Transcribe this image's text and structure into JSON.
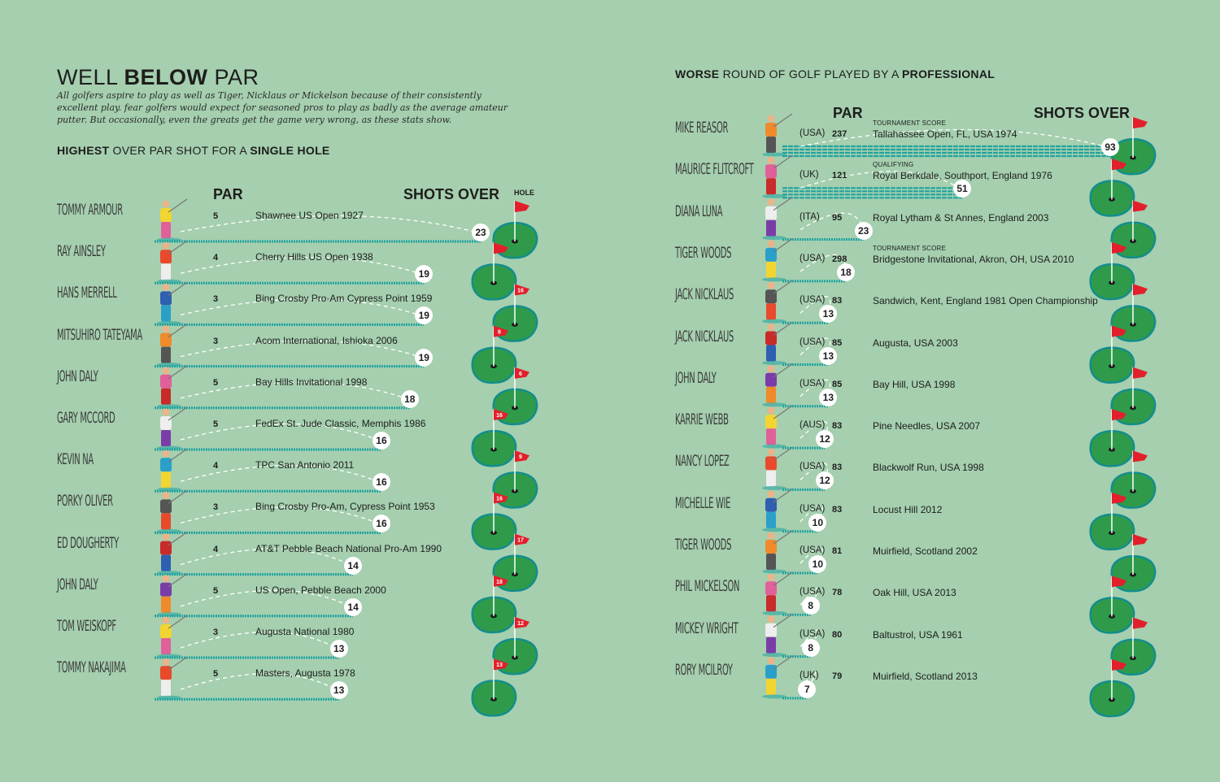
{
  "title": {
    "pre": "WELL ",
    "bold": "BELOW",
    "post": " PAR"
  },
  "intro": "All golfers aspire to play as well as Tiger, Nicklaus or Mickelson because of their consistently excellent play. fear golfers would expect for seasoned pros to play as badly as the average amateur putter. But occasionally, even the greats get the game very wrong, as these stats show.",
  "colors": {
    "background": "#a5cfae",
    "bar": "#1fa3a1",
    "green": "#2f9b4a",
    "green_rim": "#138d8d",
    "flag": "#e2202b"
  },
  "chart_data": [
    {
      "type": "bar",
      "subtitle": {
        "b1": "HIGHEST",
        "t1": " OVER PAR SHOT FOR A ",
        "b2": "SINGLE HOLE"
      },
      "par_label": "PAR",
      "shots_label": "SHOTS OVER",
      "hole_label": "HOLE",
      "rows": [
        {
          "name": "TOMMY ARMOUR",
          "par": "5",
          "event": "Shawnee US Open 1927",
          "over": 23,
          "hole": ""
        },
        {
          "name": "RAY AINSLEY",
          "par": "4",
          "event": "Cherry Hills US Open 1938",
          "over": 19,
          "hole": ""
        },
        {
          "name": "HANS MERRELL",
          "par": "3",
          "event": "Bing Crosby Pro-Am Cypress Point 1959",
          "over": 19,
          "hole": "16"
        },
        {
          "name": "MITSUHIRO TATEYAMA",
          "par": "3",
          "event": "Acom International, Ishioka 2006",
          "over": 19,
          "hole": "8"
        },
        {
          "name": "JOHN DALY",
          "par": "5",
          "event": "Bay Hills Invitational 1998",
          "over": 18,
          "hole": "6"
        },
        {
          "name": "GARY MCCORD",
          "par": "5",
          "event": "FedEx St. Jude Classic, Memphis 1986",
          "over": 16,
          "hole": "16"
        },
        {
          "name": "KEVIN NA",
          "par": "4",
          "event": "TPC San Antonio 2011",
          "over": 16,
          "hole": "9"
        },
        {
          "name": "PORKY OLIVER",
          "par": "3",
          "event": "Bing Crosby Pro-Am, Cypress Point 1953",
          "over": 16,
          "hole": "16"
        },
        {
          "name": "ED DOUGHERTY",
          "par": "4",
          "event": "AT&T Pebble Beach National Pro-Am 1990",
          "over": 14,
          "hole": "17"
        },
        {
          "name": "JOHN DALY",
          "par": "5",
          "event": "US Open, Pebble Beach 2000",
          "over": 14,
          "hole": "18"
        },
        {
          "name": "TOM WEISKOPF",
          "par": "3",
          "event": "Augusta National 1980",
          "over": 13,
          "hole": "12"
        },
        {
          "name": "TOMMY NAKAJIMA",
          "par": "5",
          "event": "Masters, Augusta 1978",
          "over": 13,
          "hole": "13"
        }
      ]
    },
    {
      "type": "bar",
      "subtitle": {
        "b1": "",
        "t1": "WORSE ",
        "b2": ""
      },
      "subtitle_full": {
        "b1": "WORSE",
        "t1": " ROUND ",
        "t2": "OF GOLF PLAYED BY A ",
        "b2": "PROFESSIONAL"
      },
      "par_label": "PAR",
      "shots_label": "SHOTS OVER",
      "rows": [
        {
          "name": "MIKE REASOR",
          "country": "(USA)",
          "par": "237",
          "note": "TOURNAMENT SCORE",
          "event": "Tallahassee Open, FL, USA 1974",
          "over": 93
        },
        {
          "name": "MAURICE FLITCROFT",
          "country": "(UK)",
          "par": "121",
          "note": "QUALIFYING",
          "event": "Royal Berkdale, Southport, England 1976",
          "over": 51
        },
        {
          "name": "DIANA LUNA",
          "country": "(ITA)",
          "par": "95",
          "note": "",
          "event": "Royal Lytham & St Annes, England 2003",
          "over": 23
        },
        {
          "name": "TIGER WOODS",
          "country": "(USA)",
          "par": "298",
          "note": "TOURNAMENT SCORE",
          "event": "Bridgestone Invitational, Akron, OH, USA 2010",
          "over": 18
        },
        {
          "name": "JACK NICKLAUS",
          "country": "(USA)",
          "par": "83",
          "note": "",
          "event": "Sandwich, Kent, England 1981 Open Championship",
          "over": 13
        },
        {
          "name": "JACK NICKLAUS",
          "country": "(USA)",
          "par": "85",
          "note": "",
          "event": "Augusta, USA 2003",
          "over": 13
        },
        {
          "name": "JOHN DALY",
          "country": "(USA)",
          "par": "85",
          "note": "",
          "event": "Bay Hill, USA 1998",
          "over": 13
        },
        {
          "name": "KARRIE WEBB",
          "country": "(AUS)",
          "par": "83",
          "note": "",
          "event": "Pine Needles, USA 2007",
          "over": 12
        },
        {
          "name": "NANCY LOPEZ",
          "country": "(USA)",
          "par": "83",
          "note": "",
          "event": "Blackwolf Run, USA 1998",
          "over": 12
        },
        {
          "name": "MICHELLE WIE",
          "country": "(USA)",
          "par": "83",
          "note": "",
          "event": "Locust Hill 2012",
          "over": 10
        },
        {
          "name": "TIGER WOODS",
          "country": "(USA)",
          "par": "81",
          "note": "",
          "event": "Muirfield, Scotland 2002",
          "over": 10
        },
        {
          "name": "PHIL MICKELSON",
          "country": "(USA)",
          "par": "78",
          "note": "",
          "event": "Oak Hill, USA 2013",
          "over": 8
        },
        {
          "name": "MICKEY WRIGHT",
          "country": "(USA)",
          "par": "80",
          "note": "",
          "event": "Baltustrol, USA 1961",
          "over": 8
        },
        {
          "name": "RORY MCILROY",
          "country": "(UK)",
          "par": "79",
          "note": "",
          "event": "Muirfield, Scotland 2013",
          "over": 7
        }
      ]
    }
  ]
}
